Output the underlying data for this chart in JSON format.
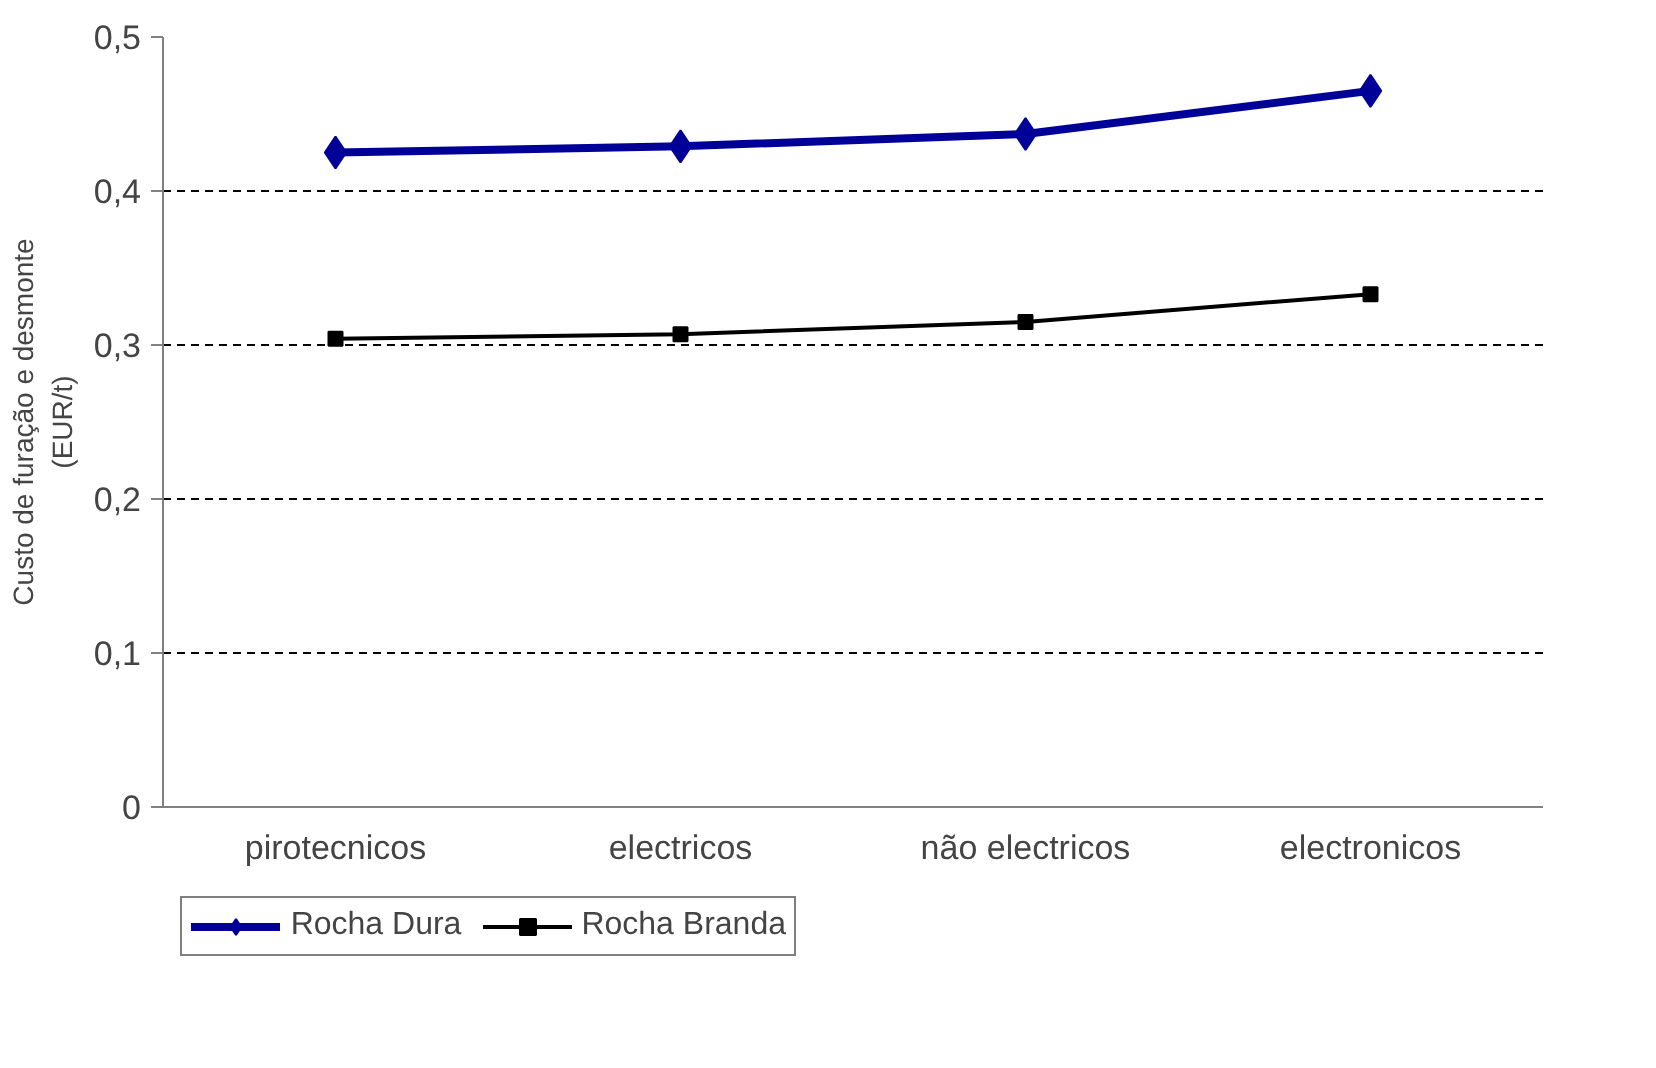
{
  "chart_data": {
    "type": "line",
    "ylabel": "Custo de furação e desmonte\n(EUR/t)",
    "categories": [
      "pirotecnicos",
      "electricos",
      "não electricos",
      "electronicos"
    ],
    "series": [
      {
        "name": "Rocha Dura",
        "color": "#000099",
        "marker": "diamond",
        "values": [
          0.425,
          0.429,
          0.437,
          0.465
        ]
      },
      {
        "name": "Rocha Branda",
        "color": "#000000",
        "marker": "square",
        "values": [
          0.304,
          0.307,
          0.315,
          0.333
        ]
      }
    ],
    "ylim": [
      0,
      0.5
    ],
    "yticks": [
      {
        "value": 0,
        "label": "0"
      },
      {
        "value": 0.1,
        "label": "0,1"
      },
      {
        "value": 0.2,
        "label": "0,2"
      },
      {
        "value": 0.3,
        "label": "0,3"
      },
      {
        "value": 0.4,
        "label": "0,4"
      },
      {
        "value": 0.5,
        "label": "0,5"
      }
    ],
    "grid": "y",
    "legend": "bottom",
    "line_style": "solid"
  }
}
